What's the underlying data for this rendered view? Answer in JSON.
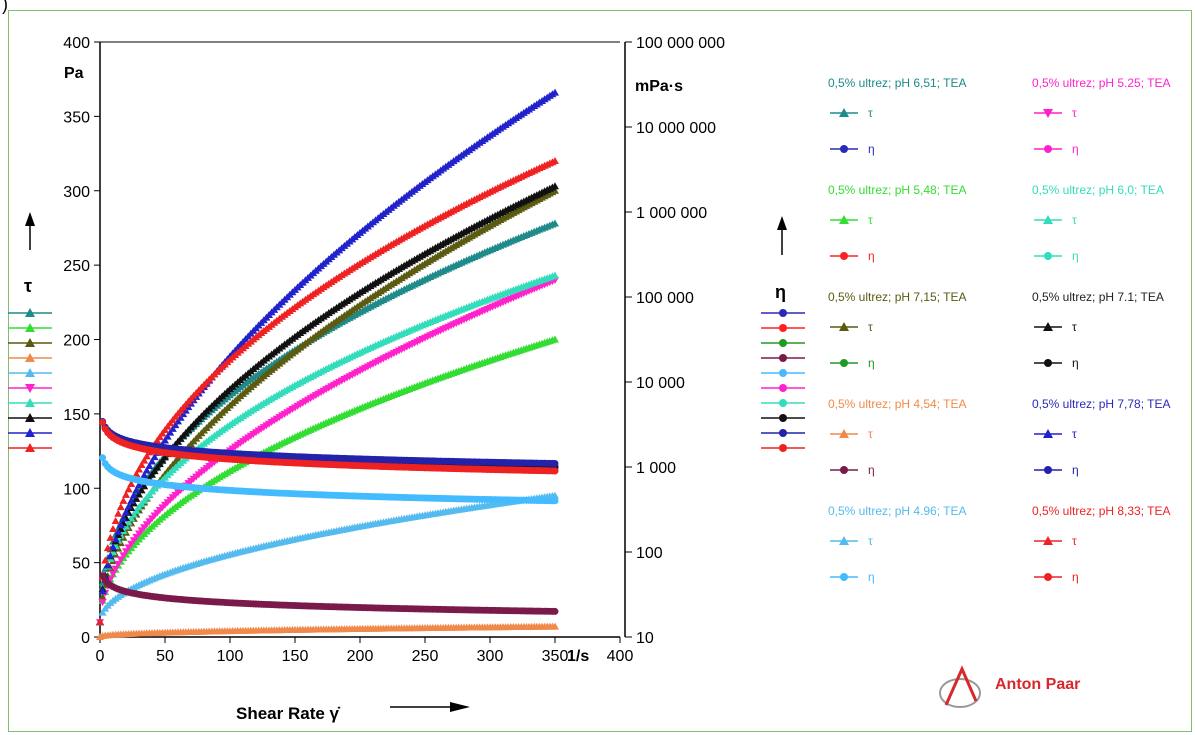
{
  "top_left_char": ")",
  "chart_data": {
    "type": "scatter",
    "title": "",
    "xlabel": "Shear Rate γ̇",
    "x_unit": "1/s",
    "xlim": [
      0,
      400
    ],
    "x_ticks": [
      "0",
      "50",
      "100",
      "150",
      "200",
      "250",
      "300",
      "350",
      "400"
    ],
    "ylabel_left": "τ",
    "y_left_unit": "Pa",
    "ylim_left": [
      0,
      400
    ],
    "y_left_ticks": [
      "0",
      "50",
      "100",
      "150",
      "200",
      "250",
      "300",
      "350",
      "400"
    ],
    "ylabel_right": "η",
    "y_right_unit": "mPa·s",
    "ylim_right": [
      10,
      100000000
    ],
    "y_right_scale": "log",
    "y_right_ticks": [
      "10",
      "100",
      "1 000",
      "10 000",
      "100 000",
      "1 000 000",
      "10 000 000",
      "100 000 000"
    ],
    "legend_position": "right",
    "groups": [
      {
        "name": "0,5% ultrez; pH 6,51; TEA",
        "color": "#1f8a8a",
        "tau": {
          "color": "#1f8a8a",
          "marker": "triangle",
          "end": 278
        },
        "eta": {
          "color": "#2a2ab8",
          "marker": "circle",
          "start_eta": 4000,
          "end_eta": 1000
        }
      },
      {
        "name": "0,5% ultrez; pH 5,48; TEA",
        "color": "#33dd33",
        "tau": {
          "color": "#33dd33",
          "marker": "triangle",
          "end": 200
        },
        "eta": {
          "color": "#ff2020",
          "marker": "circle",
          "start_eta": 4000,
          "end_eta": 900
        }
      },
      {
        "name": "0,5% ultrez; pH 7,15; TEA",
        "color": "#5a5a10",
        "tau": {
          "color": "#5a5a10",
          "marker": "triangle",
          "end": 300
        },
        "eta": {
          "color": "#229922",
          "marker": "circle",
          "start_eta": 4000,
          "end_eta": 1000
        }
      },
      {
        "name": "0,5% ultrez; pH 4,54; TEA",
        "color": "#f08a4a",
        "tau": {
          "color": "#f08a4a",
          "marker": "triangle",
          "end": 7
        },
        "eta": {
          "color": "#7a1a4a",
          "marker": "circle",
          "start_eta": 60,
          "end_eta": 20
        }
      },
      {
        "name": "0,5% ultrez; pH 4.96; TEA",
        "color": "#55bbee",
        "tau": {
          "color": "#55bbee",
          "marker": "triangle",
          "end": 95
        },
        "eta": {
          "color": "#44bbff",
          "marker": "circle",
          "start_eta": 1500,
          "end_eta": 400
        }
      },
      {
        "name": "0,5% ultrez; pH 5.25; TEA",
        "color": "#ff22cc",
        "tau": {
          "color": "#ff22cc",
          "marker": "triangle-down",
          "end": 240
        },
        "eta": {
          "color": "#ff22cc",
          "marker": "circle",
          "start_eta": 4000,
          "end_eta": 1000
        }
      },
      {
        "name": "0,5% ultrez; pH 6,0; TEA",
        "color": "#33ddbb",
        "tau": {
          "color": "#33ddbb",
          "marker": "triangle",
          "end": 243
        },
        "eta": {
          "color": "#33ddbb",
          "marker": "circle",
          "start_eta": 4000,
          "end_eta": 1000
        }
      },
      {
        "name": "0,5% ultrez; pH 7.1; TEA",
        "color": "#222222",
        "tau": {
          "color": "#111111",
          "marker": "triangle",
          "end": 303
        },
        "eta": {
          "color": "#111111",
          "marker": "circle",
          "start_eta": 4000,
          "end_eta": 1000
        }
      },
      {
        "name": "0,5% ultrez; pH 7,78; TEA",
        "color": "#2a2ab8",
        "tau": {
          "color": "#2222cc",
          "marker": "triangle",
          "end": 366
        },
        "eta": {
          "color": "#2222aa",
          "marker": "circle",
          "start_eta": 4000,
          "end_eta": 1100
        }
      },
      {
        "name": "0,5% ultrez; pH 8,33; TEA",
        "color": "#ee2222",
        "tau": {
          "color": "#ee2222",
          "marker": "triangle",
          "end": 320
        },
        "eta": {
          "color": "#ee2222",
          "marker": "circle",
          "start_eta": 4000,
          "end_eta": 900
        }
      }
    ],
    "tau_symbol": "τ",
    "eta_symbol": "η"
  },
  "logo_text": "Anton Paar"
}
